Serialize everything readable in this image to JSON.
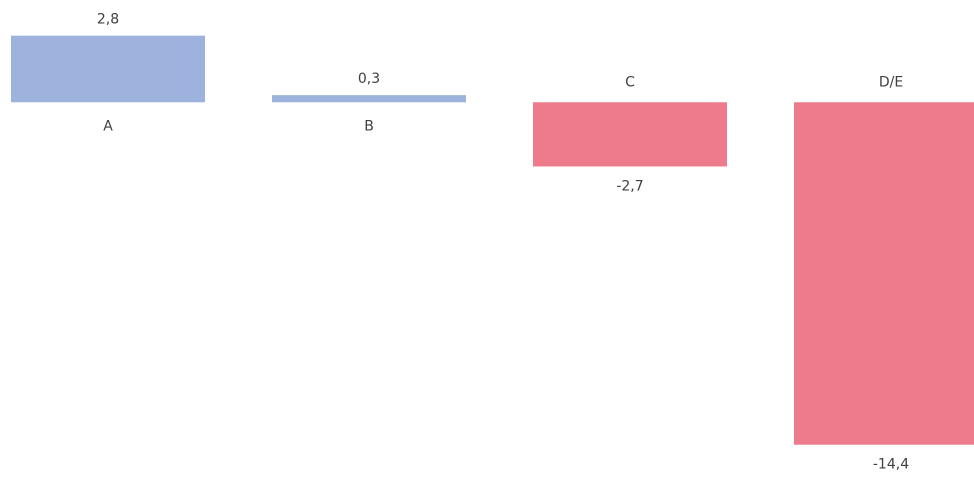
{
  "chart_data": {
    "type": "bar",
    "categories": [
      "A",
      "B",
      "C",
      "D/E"
    ],
    "values": [
      2.8,
      0.3,
      -2.7,
      -14.4
    ],
    "value_labels": [
      "2,8",
      "0,3",
      "-2,7",
      "-14,4"
    ],
    "colors": [
      "#9db3de",
      "#9db3de",
      "#ee7b8b",
      "#ee7b8b"
    ],
    "ylim": [
      -15.8,
      4.3
    ]
  }
}
